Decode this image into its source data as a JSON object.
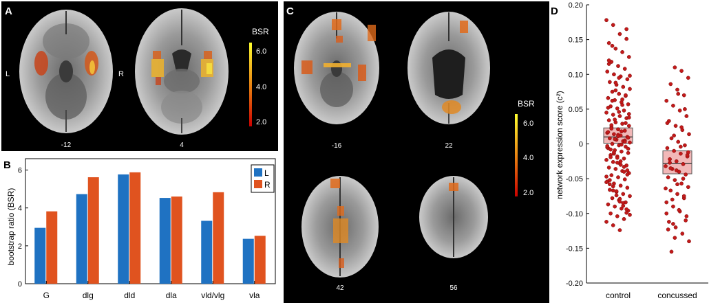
{
  "panels": {
    "A": {
      "label": "A",
      "left_marker": "L",
      "right_marker": "R",
      "slices": [
        "-12",
        "4"
      ],
      "colorbar": {
        "title": "BSR",
        "ticks": [
          "6.0",
          "4.0",
          "2.0"
        ]
      }
    },
    "B": {
      "label": "B"
    },
    "C": {
      "label": "C",
      "slices": [
        "-16",
        "22",
        "42",
        "56"
      ],
      "colorbar": {
        "title": "BSR",
        "ticks": [
          "6.0",
          "4.0",
          "2.0"
        ]
      }
    },
    "D": {
      "label": "D"
    }
  },
  "colors": {
    "left": "#1f72c2",
    "right": "#e0531f",
    "point": "#c21a1a",
    "box_fill": "#f2b8b8",
    "box_edge": "#555555",
    "panel_bg": "#000000",
    "brain_gray": "#8c8c8c"
  },
  "chart_data": [
    {
      "panel": "B",
      "type": "bar",
      "categories": [
        "G",
        "dlg",
        "dld",
        "dla",
        "vld/vlg",
        "vla"
      ],
      "series": [
        {
          "name": "L",
          "values": [
            2.95,
            4.73,
            5.77,
            4.53,
            3.32,
            2.37
          ]
        },
        {
          "name": "R",
          "values": [
            3.82,
            5.62,
            5.88,
            4.6,
            4.83,
            2.53
          ]
        }
      ],
      "ylabel": "bootstrap ratio (BSR)",
      "xlabel": "",
      "yticks": [
        0,
        2,
        4,
        6
      ],
      "ylim": [
        0,
        6.6
      ],
      "legend": "top-right"
    },
    {
      "panel": "D",
      "type": "scatter",
      "categories": [
        "control",
        "concussed"
      ],
      "ylabel": "network expression score (c²)",
      "ylim": [
        -0.2,
        0.2
      ],
      "yticks": [
        0.2,
        0.15,
        0.1,
        0.05,
        0,
        -0.05,
        -0.1,
        -0.15,
        -0.2
      ],
      "ytick_labels": [
        "0.20",
        "0.15",
        "0.10",
        "0.05",
        "0",
        "-0.05",
        "-0.10",
        "-0.15",
        "-0.20"
      ],
      "groups": [
        {
          "name": "control",
          "median": 0.01,
          "box": [
            0.001,
            0.023
          ],
          "values": [
            0.178,
            0.171,
            0.158,
            0.151,
            0.145,
            0.137,
            0.132,
            0.125,
            0.118,
            0.112,
            0.108,
            0.104,
            0.1,
            0.097,
            0.093,
            0.089,
            0.085,
            0.082,
            0.079,
            0.075,
            0.072,
            0.069,
            0.066,
            0.063,
            0.06,
            0.057,
            0.054,
            0.051,
            0.048,
            0.045,
            0.042,
            0.04,
            0.037,
            0.034,
            0.031,
            0.029,
            0.026,
            0.024,
            0.021,
            0.019,
            0.016,
            0.014,
            0.012,
            0.01,
            0.008,
            0.006,
            0.004,
            0.002,
            0.0,
            -0.002,
            -0.004,
            -0.006,
            -0.009,
            -0.011,
            -0.013,
            -0.016,
            -0.018,
            -0.021,
            -0.023,
            -0.026,
            -0.028,
            -0.031,
            -0.034,
            -0.036,
            -0.039,
            -0.042,
            -0.045,
            -0.048,
            -0.051,
            -0.054,
            -0.057,
            -0.06,
            -0.063,
            -0.066,
            -0.069,
            -0.072,
            -0.075,
            -0.078,
            -0.081,
            -0.084,
            -0.087,
            -0.09,
            -0.093,
            -0.096,
            -0.1,
            -0.104,
            -0.108,
            -0.112,
            -0.117,
            -0.124,
            0.165,
            0.12,
            0.088,
            0.064,
            0.043,
            0.027,
            0.013,
            0.005,
            -0.005,
            -0.014,
            -0.025,
            -0.038,
            -0.052,
            -0.068,
            -0.085,
            -0.102,
            0.141,
            0.095,
            0.07,
            0.052,
            0.035,
            0.018,
            0.009,
            -0.008,
            -0.02,
            -0.033,
            -0.047,
            -0.061,
            -0.079,
            -0.094,
            0.115,
            0.077,
            0.056,
            0.038,
            0.022,
            0.011,
            0.003,
            -0.003,
            -0.012,
            -0.03,
            -0.044,
            -0.058,
            -0.074,
            -0.089,
            0.098,
            0.062,
            0.046,
            0.03,
            0.017,
            0.007,
            -0.001,
            -0.007,
            -0.019,
            -0.027,
            -0.04,
            -0.055,
            -0.067,
            -0.083,
            -0.099
          ]
        },
        {
          "name": "concussed",
          "median": -0.028,
          "box": [
            -0.043,
            -0.01
          ],
          "values": [
            0.11,
            0.105,
            0.095,
            0.086,
            0.078,
            0.07,
            0.062,
            0.055,
            0.048,
            0.04,
            0.033,
            0.026,
            0.02,
            0.014,
            0.008,
            0.003,
            -0.002,
            -0.006,
            -0.01,
            -0.014,
            -0.018,
            -0.022,
            -0.025,
            -0.029,
            -0.032,
            -0.036,
            -0.04,
            -0.044,
            -0.048,
            -0.052,
            -0.057,
            -0.062,
            -0.067,
            -0.072,
            -0.078,
            -0.084,
            -0.09,
            -0.097,
            -0.104,
            -0.112,
            -0.12,
            -0.129,
            -0.14,
            -0.155,
            0.072,
            0.05,
            0.03,
            0.012,
            -0.004,
            -0.016,
            -0.027,
            -0.038,
            -0.05,
            -0.064,
            -0.08,
            -0.095,
            -0.11,
            -0.123,
            -0.135,
            0.024,
            -0.012,
            -0.035,
            -0.058,
            -0.075,
            -0.1,
            -0.115
          ]
        }
      ]
    }
  ]
}
